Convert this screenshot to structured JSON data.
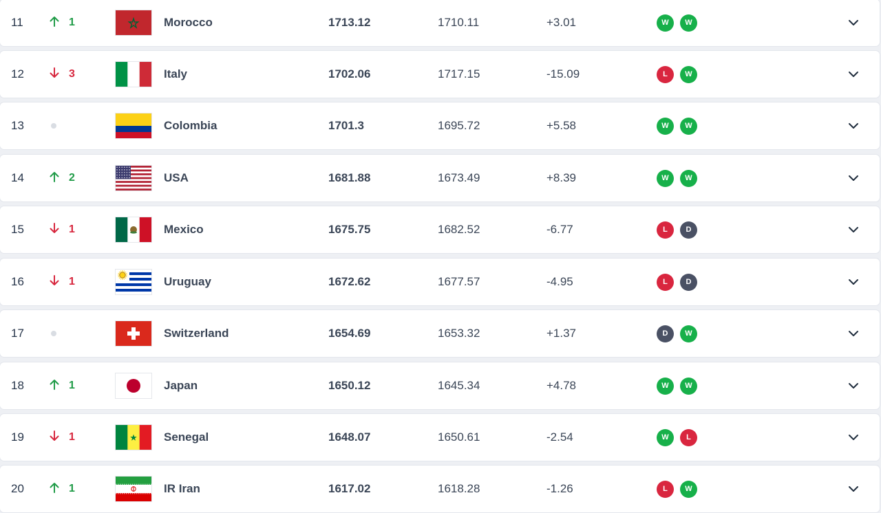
{
  "rows": [
    {
      "rank": "11",
      "dir": "up",
      "move": "1",
      "team": "Morocco",
      "points": "1713.12",
      "previous": "1710.11",
      "diff": "+3.01",
      "form": [
        "W",
        "W"
      ],
      "flag": "morocco"
    },
    {
      "rank": "12",
      "dir": "down",
      "move": "3",
      "team": "Italy",
      "points": "1702.06",
      "previous": "1717.15",
      "diff": "-15.09",
      "form": [
        "L",
        "W"
      ],
      "flag": "italy"
    },
    {
      "rank": "13",
      "dir": "same",
      "move": "",
      "team": "Colombia",
      "points": "1701.3",
      "previous": "1695.72",
      "diff": "+5.58",
      "form": [
        "W",
        "W"
      ],
      "flag": "colombia"
    },
    {
      "rank": "14",
      "dir": "up",
      "move": "2",
      "team": "USA",
      "points": "1681.88",
      "previous": "1673.49",
      "diff": "+8.39",
      "form": [
        "W",
        "W"
      ],
      "flag": "usa"
    },
    {
      "rank": "15",
      "dir": "down",
      "move": "1",
      "team": "Mexico",
      "points": "1675.75",
      "previous": "1682.52",
      "diff": "-6.77",
      "form": [
        "L",
        "D"
      ],
      "flag": "mexico"
    },
    {
      "rank": "16",
      "dir": "down",
      "move": "1",
      "team": "Uruguay",
      "points": "1672.62",
      "previous": "1677.57",
      "diff": "-4.95",
      "form": [
        "L",
        "D"
      ],
      "flag": "uruguay"
    },
    {
      "rank": "17",
      "dir": "same",
      "move": "",
      "team": "Switzerland",
      "points": "1654.69",
      "previous": "1653.32",
      "diff": "+1.37",
      "form": [
        "D",
        "W"
      ],
      "flag": "switzerland"
    },
    {
      "rank": "18",
      "dir": "up",
      "move": "1",
      "team": "Japan",
      "points": "1650.12",
      "previous": "1645.34",
      "diff": "+4.78",
      "form": [
        "W",
        "W"
      ],
      "flag": "japan"
    },
    {
      "rank": "19",
      "dir": "down",
      "move": "1",
      "team": "Senegal",
      "points": "1648.07",
      "previous": "1650.61",
      "diff": "-2.54",
      "form": [
        "W",
        "L"
      ],
      "flag": "senegal"
    },
    {
      "rank": "20",
      "dir": "up",
      "move": "1",
      "team": "IR Iran",
      "points": "1617.02",
      "previous": "1618.28",
      "diff": "-1.26",
      "form": [
        "L",
        "W"
      ],
      "flag": "iran"
    }
  ],
  "colors": {
    "up": "#1f9b47",
    "down": "#d7263d",
    "win": "#17b04a",
    "loss": "#d9263f",
    "draw": "#4a5164"
  },
  "icons": {
    "up": "arrow-up-icon",
    "down": "arrow-down-icon",
    "same": "no-change-dot-icon",
    "expand": "chevron-down-icon"
  }
}
